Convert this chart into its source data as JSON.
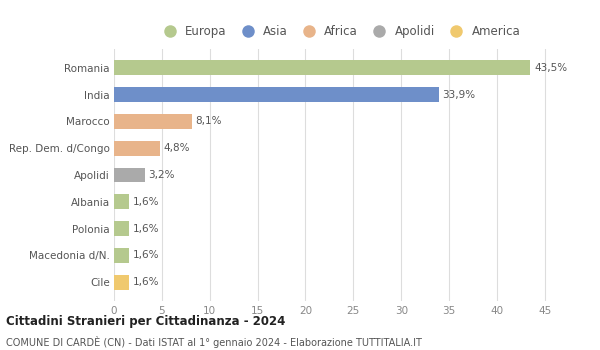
{
  "categories": [
    "Romania",
    "India",
    "Marocco",
    "Rep. Dem. d/Congo",
    "Apolidi",
    "Albania",
    "Polonia",
    "Macedonia d/N.",
    "Cile"
  ],
  "values": [
    43.5,
    33.9,
    8.1,
    4.8,
    3.2,
    1.6,
    1.6,
    1.6,
    1.6
  ],
  "labels": [
    "43,5%",
    "33,9%",
    "8,1%",
    "4,8%",
    "3,2%",
    "1,6%",
    "1,6%",
    "1,6%",
    "1,6%"
  ],
  "colors": [
    "#b5c98e",
    "#6e8fc9",
    "#e8b48a",
    "#e8b48a",
    "#aaaaaa",
    "#b5c98e",
    "#b5c98e",
    "#b5c98e",
    "#f0c96e"
  ],
  "legend": [
    {
      "label": "Europa",
      "color": "#b5c98e"
    },
    {
      "label": "Asia",
      "color": "#6e8fc9"
    },
    {
      "label": "Africa",
      "color": "#e8b48a"
    },
    {
      "label": "Apolidi",
      "color": "#aaaaaa"
    },
    {
      "label": "America",
      "color": "#f0c96e"
    }
  ],
  "xlim": [
    0,
    47
  ],
  "xticks": [
    0,
    5,
    10,
    15,
    20,
    25,
    30,
    35,
    40,
    45
  ],
  "title": "Cittadini Stranieri per Cittadinanza - 2024",
  "subtitle": "COMUNE DI CARDÈ (CN) - Dati ISTAT al 1° gennaio 2024 - Elaborazione TUTTITALIA.IT",
  "bg_color": "#ffffff",
  "grid_color": "#dddddd",
  "bar_height": 0.55
}
